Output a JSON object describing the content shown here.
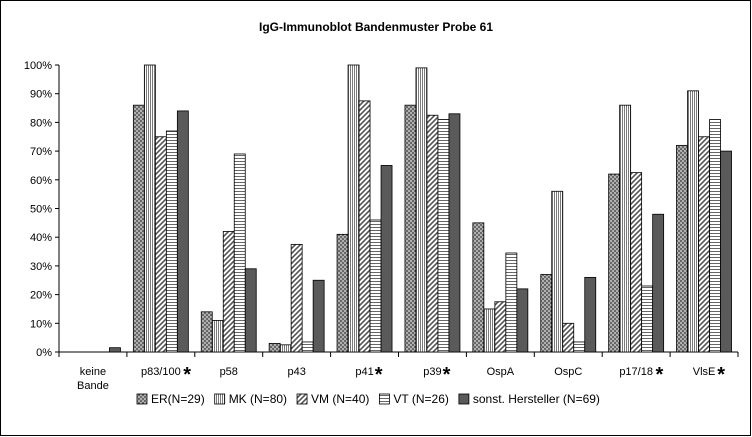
{
  "chart_data": {
    "type": "bar",
    "title": "IgG-Immunoblot Bandenmuster Probe 61",
    "categories": [
      {
        "line1": "keine",
        "line2": "Bande",
        "star": ""
      },
      {
        "line1": "p83/100",
        "line2": "",
        "star": "*"
      },
      {
        "line1": "p58",
        "line2": "",
        "star": ""
      },
      {
        "line1": "p43",
        "line2": "",
        "star": ""
      },
      {
        "line1": "p41",
        "line2": "",
        "star": "*"
      },
      {
        "line1": "p39",
        "line2": "",
        "star": "*"
      },
      {
        "line1": "OspA",
        "line2": "",
        "star": ""
      },
      {
        "line1": "OspC",
        "line2": "",
        "star": ""
      },
      {
        "line1": "p17/18",
        "line2": "",
        "star": "*"
      },
      {
        "line1": "VlsE",
        "line2": "",
        "star": "*"
      }
    ],
    "ylim": [
      0,
      100
    ],
    "yticks": [
      "0%",
      "10%",
      "20%",
      "30%",
      "40%",
      "50%",
      "60%",
      "70%",
      "80%",
      "90%",
      "100%"
    ],
    "grid": false,
    "legend_position": "bottom",
    "series": [
      {
        "name": "ER(N=29)",
        "pattern": "dots",
        "values": [
          0,
          86,
          14,
          3,
          41,
          86,
          45,
          27,
          62,
          72
        ]
      },
      {
        "name": "MK (N=80)",
        "pattern": "vlines",
        "values": [
          0,
          100,
          11,
          2.5,
          100,
          99,
          15,
          56,
          86,
          91
        ]
      },
      {
        "name": "VM (N=40)",
        "pattern": "diag",
        "values": [
          0,
          75,
          42,
          37.5,
          87.5,
          82.5,
          17.5,
          10,
          62.5,
          75
        ]
      },
      {
        "name": "VT (N=26)",
        "pattern": "hlines",
        "values": [
          0,
          77,
          69,
          3.5,
          46,
          81,
          34.5,
          3.5,
          23,
          81
        ]
      },
      {
        "name": "sonst. Hersteller (N=69)",
        "pattern": "solid",
        "values": [
          1.5,
          84,
          29,
          25,
          65,
          83,
          22,
          26,
          48,
          70
        ]
      }
    ]
  }
}
